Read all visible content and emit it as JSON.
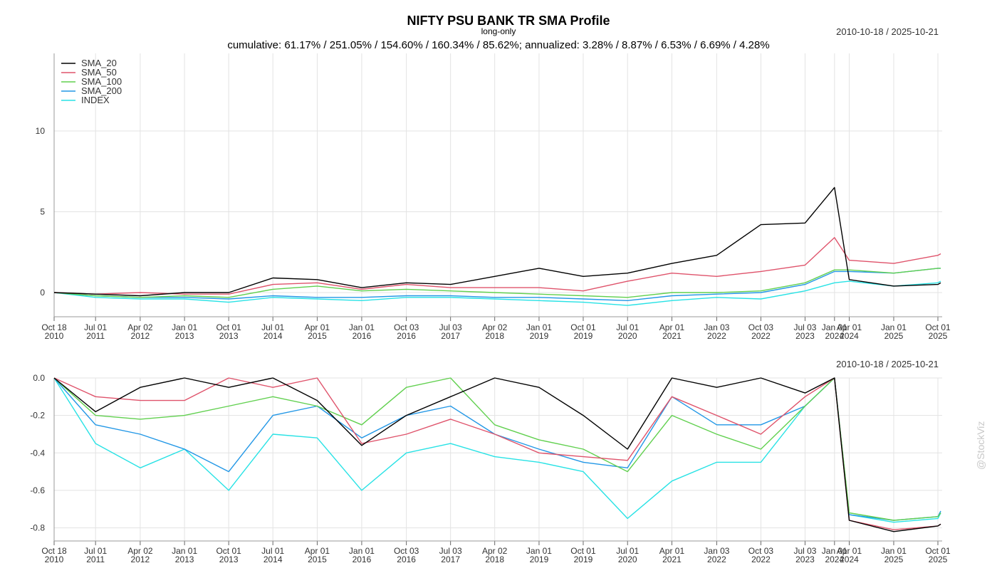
{
  "header": {
    "title": "NIFTY PSU BANK TR SMA Profile",
    "subtitle": "long-only",
    "summary": "cumulative: 61.17% / 251.05% / 154.60% / 160.34% / 85.62%; annualized: 3.28% / 8.87% / 6.53% / 6.69% / 4.28%",
    "date_range": "2010-10-18 / 2025-10-21",
    "watermark": "@StockViz"
  },
  "colors": {
    "SMA_20": "#000000",
    "SMA_50": "#df536b",
    "SMA_100": "#61d04f",
    "SMA_200": "#2297e6",
    "INDEX": "#28e2e5",
    "grid": "#e3e3e3",
    "axis": "#999999"
  },
  "chart_data": [
    {
      "type": "line",
      "panel": "cumulative-returns",
      "title": "",
      "date_range": "2010-10-18 / 2025-10-21",
      "x": [
        "2010-10-18",
        "2011-07-01",
        "2012-04-02",
        "2013-01-01",
        "2013-10-01",
        "2014-07-01",
        "2015-04-01",
        "2016-01-01",
        "2016-10-03",
        "2017-07-03",
        "2018-04-02",
        "2019-01-01",
        "2019-10-01",
        "2020-07-01",
        "2021-04-01",
        "2022-01-03",
        "2022-10-03",
        "2023-07-03",
        "2024-01-01",
        "2024-04-01",
        "2025-01-01",
        "2025-10-01",
        "2025-10-21"
      ],
      "ylim": [
        -1.5,
        14.8
      ],
      "yticks": [
        "0",
        "5",
        "10"
      ],
      "legend": {
        "position": "top-left",
        "entries": [
          "SMA_20",
          "SMA_50",
          "SMA_100",
          "SMA_200",
          "INDEX"
        ]
      },
      "grid": true,
      "series": [
        {
          "name": "SMA_20",
          "values": [
            0.0,
            -0.1,
            -0.2,
            0.0,
            0.0,
            0.9,
            0.8,
            0.3,
            0.6,
            0.5,
            1.0,
            1.5,
            1.0,
            1.2,
            1.8,
            2.3,
            4.2,
            4.3,
            6.5,
            0.8,
            0.4,
            0.5,
            0.6
          ]
        },
        {
          "name": "SMA_50",
          "values": [
            0.0,
            -0.1,
            0.0,
            -0.1,
            -0.1,
            0.5,
            0.6,
            0.2,
            0.5,
            0.3,
            0.3,
            0.3,
            0.1,
            0.7,
            1.2,
            1.0,
            1.3,
            1.7,
            3.4,
            2.0,
            1.8,
            2.3,
            2.4
          ]
        },
        {
          "name": "SMA_100",
          "values": [
            0.0,
            -0.2,
            -0.3,
            -0.2,
            -0.3,
            0.2,
            0.4,
            0.1,
            0.2,
            0.1,
            0.0,
            -0.1,
            -0.2,
            -0.3,
            0.0,
            0.0,
            0.1,
            0.6,
            1.4,
            1.4,
            1.2,
            1.5,
            1.5
          ]
        },
        {
          "name": "SMA_200",
          "values": [
            0.0,
            -0.2,
            -0.3,
            -0.3,
            -0.4,
            -0.2,
            -0.3,
            -0.3,
            -0.2,
            -0.2,
            -0.3,
            -0.3,
            -0.4,
            -0.5,
            -0.2,
            -0.1,
            0.0,
            0.5,
            1.3,
            1.3,
            1.2,
            1.5,
            1.5
          ]
        },
        {
          "name": "INDEX",
          "values": [
            0.0,
            -0.3,
            -0.4,
            -0.4,
            -0.6,
            -0.3,
            -0.4,
            -0.5,
            -0.3,
            -0.3,
            -0.4,
            -0.5,
            -0.6,
            -0.8,
            -0.5,
            -0.3,
            -0.4,
            0.1,
            0.6,
            0.7,
            0.4,
            0.6,
            0.7
          ]
        }
      ]
    },
    {
      "type": "line",
      "panel": "drawdowns",
      "title": "",
      "date_range": "2010-10-18 / 2025-10-21",
      "x": [
        "2010-10-18",
        "2011-07-01",
        "2012-04-02",
        "2013-01-01",
        "2013-10-01",
        "2014-07-01",
        "2015-04-01",
        "2016-01-01",
        "2016-10-03",
        "2017-07-03",
        "2018-04-02",
        "2019-01-01",
        "2019-10-01",
        "2020-07-01",
        "2021-04-01",
        "2022-01-03",
        "2022-10-03",
        "2023-07-03",
        "2024-01-01",
        "2024-04-01",
        "2025-01-01",
        "2025-10-01",
        "2025-10-21"
      ],
      "ylim": [
        -0.87,
        0.0
      ],
      "yticks": [
        "0.0",
        "-0.2",
        "-0.4",
        "-0.6",
        "-0.8"
      ],
      "grid": true,
      "series": [
        {
          "name": "SMA_20",
          "values": [
            0.0,
            -0.18,
            -0.05,
            0.0,
            -0.05,
            0.0,
            -0.12,
            -0.36,
            -0.2,
            -0.1,
            0.0,
            -0.05,
            -0.2,
            -0.38,
            0.0,
            -0.05,
            0.0,
            -0.08,
            0.0,
            -0.76,
            -0.82,
            -0.79,
            -0.78
          ]
        },
        {
          "name": "SMA_50",
          "values": [
            0.0,
            -0.1,
            -0.12,
            -0.12,
            0.0,
            -0.05,
            0.0,
            -0.35,
            -0.3,
            -0.22,
            -0.3,
            -0.4,
            -0.42,
            -0.44,
            -0.1,
            -0.2,
            -0.3,
            -0.1,
            0.0,
            -0.76,
            -0.81,
            -0.79,
            -0.78
          ]
        },
        {
          "name": "SMA_100",
          "values": [
            0.0,
            -0.2,
            -0.22,
            -0.2,
            -0.15,
            -0.1,
            -0.15,
            -0.25,
            -0.05,
            0.0,
            -0.25,
            -0.33,
            -0.38,
            -0.5,
            -0.2,
            -0.3,
            -0.38,
            -0.15,
            0.0,
            -0.72,
            -0.76,
            -0.74,
            -0.72
          ]
        },
        {
          "name": "SMA_200",
          "values": [
            0.0,
            -0.25,
            -0.3,
            -0.38,
            -0.5,
            -0.2,
            -0.15,
            -0.32,
            -0.2,
            -0.15,
            -0.3,
            -0.38,
            -0.45,
            -0.48,
            -0.1,
            -0.25,
            -0.25,
            -0.15,
            0.0,
            -0.73,
            -0.76,
            -0.74,
            -0.71
          ]
        },
        {
          "name": "INDEX",
          "values": [
            0.0,
            -0.35,
            -0.48,
            -0.38,
            -0.6,
            -0.3,
            -0.32,
            -0.6,
            -0.4,
            -0.35,
            -0.42,
            -0.45,
            -0.5,
            -0.75,
            -0.55,
            -0.45,
            -0.45,
            -0.15,
            0.0,
            -0.73,
            -0.77,
            -0.75,
            -0.72
          ]
        }
      ]
    }
  ]
}
